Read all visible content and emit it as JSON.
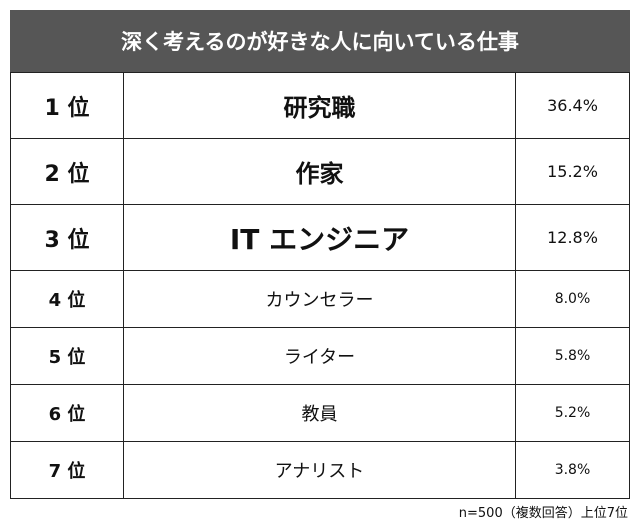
{
  "header": {
    "title": "深く考えるのが好きな人に向いている仕事"
  },
  "table": {
    "rows": [
      [
        "1 位",
        "研究職",
        "36.4%"
      ],
      [
        "2 位",
        "作家",
        "15.2%"
      ],
      [
        "3 位",
        "IT エンジニア",
        "12.8%"
      ],
      [
        "4 位",
        "カウンセラー",
        "8.0%"
      ],
      [
        "5 位",
        "ライター",
        "5.8%"
      ],
      [
        "6 位",
        "教員",
        "5.2%"
      ],
      [
        "7 位",
        "アナリスト",
        "3.8%"
      ]
    ]
  },
  "footnote": "n=500（複数回答）上位7位"
}
